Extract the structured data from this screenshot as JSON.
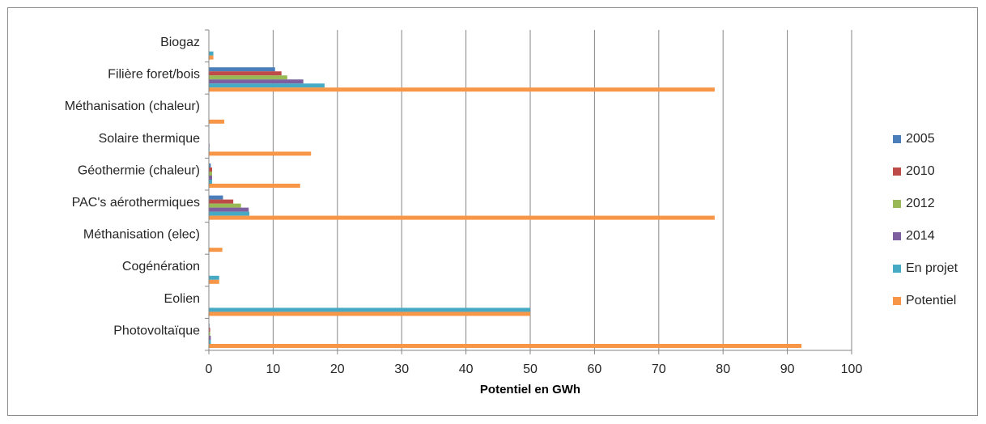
{
  "chart_data": {
    "type": "bar",
    "orientation": "horizontal",
    "categories": [
      "Biogaz",
      "Filière foret/bois",
      "Méthanisation (chaleur)",
      "Solaire thermique",
      "Géothermie (chaleur)",
      "PAC's aérothermiques",
      "Méthanisation (elec)",
      "Cogénération",
      "Eolien",
      "Photovoltaïque"
    ],
    "series": [
      {
        "name": "2005",
        "color": "#4a7ebb",
        "values": [
          0,
          10.3,
          0,
          0,
          0.3,
          2.2,
          0,
          0,
          0,
          0.1
        ]
      },
      {
        "name": "2010",
        "color": "#be4b48",
        "values": [
          0,
          11.3,
          0,
          0,
          0.5,
          3.8,
          0,
          0,
          0,
          0.2
        ]
      },
      {
        "name": "2012",
        "color": "#98b954",
        "values": [
          0,
          12.2,
          0,
          0,
          0.5,
          5.0,
          0,
          0,
          0,
          0.2
        ]
      },
      {
        "name": "2014",
        "color": "#7d5fa0",
        "values": [
          0,
          14.7,
          0,
          0.1,
          0.5,
          6.2,
          0,
          0,
          0,
          0.3
        ]
      },
      {
        "name": "En projet",
        "color": "#46aac5",
        "values": [
          0.7,
          18.0,
          0,
          0.1,
          0.5,
          6.3,
          0,
          1.6,
          50.0,
          0.3
        ]
      },
      {
        "name": "Potentiel",
        "color": "#f79646",
        "values": [
          0.7,
          78.7,
          2.4,
          15.9,
          14.2,
          78.7,
          2.1,
          1.6,
          50.0,
          92.2
        ]
      }
    ],
    "xaxis": {
      "min": 0,
      "max": 100,
      "step": 10,
      "label": "Potentiel en GWh"
    },
    "grid": true,
    "legend_position": "right"
  }
}
